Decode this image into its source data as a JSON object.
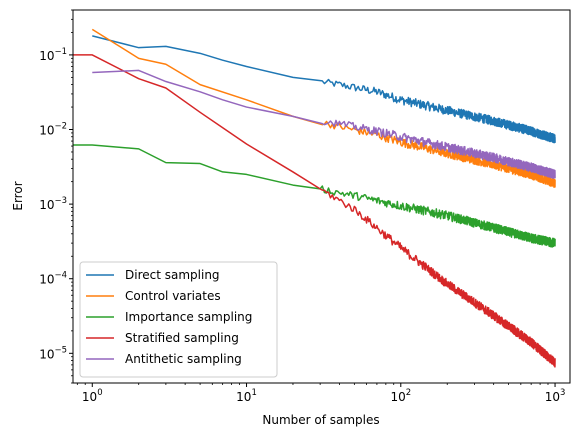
{
  "chart_data": {
    "type": "line",
    "xlabel": "Number of samples",
    "ylabel": "Error",
    "xscale": "log",
    "yscale": "log",
    "xlim": [
      0.75,
      1250
    ],
    "ylim": [
      4e-06,
      0.4
    ],
    "grid": false,
    "legend_position": "lower-left",
    "x_ticks": [
      {
        "value": 1,
        "base": "10",
        "exp": "0"
      },
      {
        "value": 10,
        "base": "10",
        "exp": "1"
      },
      {
        "value": 100,
        "base": "10",
        "exp": "2"
      },
      {
        "value": 1000,
        "base": "10",
        "exp": "3"
      }
    ],
    "y_ticks": [
      {
        "value": 1e-05,
        "base": "10",
        "exp": "−5"
      },
      {
        "value": 0.0001,
        "base": "10",
        "exp": "−4"
      },
      {
        "value": 0.001,
        "base": "10",
        "exp": "−3"
      },
      {
        "value": 0.01,
        "base": "10",
        "exp": "−2"
      },
      {
        "value": 0.1,
        "base": "10",
        "exp": "−1"
      }
    ],
    "series": [
      {
        "name": "Direct sampling",
        "color": "#1f77b4",
        "x": [
          1,
          2,
          3,
          5,
          7,
          10,
          20,
          40,
          70,
          100,
          200,
          400,
          700,
          1000
        ],
        "y": [
          0.18,
          0.125,
          0.13,
          0.105,
          0.085,
          0.07,
          0.05,
          0.04,
          0.032,
          0.025,
          0.018,
          0.013,
          0.0095,
          0.0075
        ]
      },
      {
        "name": "Control variates",
        "color": "#ff7f0e",
        "x": [
          1,
          2,
          3,
          5,
          10,
          20,
          40,
          70,
          100,
          200,
          400,
          700,
          1000
        ],
        "y": [
          0.22,
          0.09,
          0.075,
          0.04,
          0.025,
          0.015,
          0.011,
          0.0085,
          0.0068,
          0.0048,
          0.0034,
          0.0025,
          0.0019
        ]
      },
      {
        "name": "Importance sampling",
        "color": "#2ca02c",
        "x": [
          0.75,
          1,
          2,
          3,
          5,
          7,
          10,
          20,
          30,
          50,
          100,
          200,
          400,
          700,
          1000
        ],
        "y": [
          0.0062,
          0.0062,
          0.0055,
          0.0036,
          0.0035,
          0.0027,
          0.0025,
          0.0018,
          0.0016,
          0.0013,
          0.00095,
          0.0007,
          0.00048,
          0.00035,
          0.0003
        ]
      },
      {
        "name": "Stratified sampling",
        "color": "#d62728",
        "x": [
          0.75,
          1,
          2,
          3,
          5,
          10,
          20,
          30,
          50,
          100,
          200,
          400,
          700,
          1000
        ],
        "y": [
          0.1,
          0.1,
          0.048,
          0.036,
          0.017,
          0.0064,
          0.0027,
          0.0016,
          0.00085,
          0.00026,
          8.5e-05,
          3.2e-05,
          1.4e-05,
          7.5e-06
        ]
      },
      {
        "name": "Antithetic sampling",
        "color": "#9467bd",
        "x": [
          1,
          2,
          3,
          5,
          7,
          10,
          20,
          40,
          70,
          100,
          200,
          400,
          700,
          1000
        ],
        "y": [
          0.058,
          0.062,
          0.044,
          0.032,
          0.025,
          0.02,
          0.015,
          0.012,
          0.0095,
          0.008,
          0.0058,
          0.0042,
          0.0031,
          0.0025
        ]
      }
    ]
  }
}
